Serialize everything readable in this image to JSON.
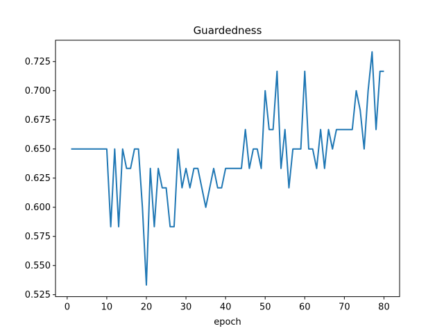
{
  "chart_data": {
    "type": "line",
    "title": "Guardedness",
    "xlabel": "epoch",
    "ylabel": "",
    "xlim": [
      -2.95,
      83.95
    ],
    "ylim": [
      0.5233,
      0.7433
    ],
    "xticks": [
      0,
      10,
      20,
      30,
      40,
      50,
      60,
      70,
      80
    ],
    "xtick_labels": [
      "0",
      "10",
      "20",
      "30",
      "40",
      "50",
      "60",
      "70",
      "80"
    ],
    "yticks": [
      0.525,
      0.55,
      0.575,
      0.6,
      0.625,
      0.65,
      0.675,
      0.7,
      0.725
    ],
    "ytick_labels": [
      "0.525",
      "0.550",
      "0.575",
      "0.600",
      "0.625",
      "0.650",
      "0.675",
      "0.700",
      "0.725"
    ],
    "grid": false,
    "series": [
      {
        "color": "#1f77b4",
        "x": [
          1,
          2,
          3,
          4,
          5,
          6,
          7,
          8,
          9,
          10,
          11,
          12,
          13,
          14,
          15,
          16,
          17,
          18,
          19,
          20,
          21,
          22,
          23,
          24,
          25,
          26,
          27,
          28,
          29,
          30,
          31,
          32,
          33,
          34,
          35,
          36,
          37,
          38,
          39,
          40,
          41,
          42,
          43,
          44,
          45,
          46,
          47,
          48,
          49,
          50,
          51,
          52,
          53,
          54,
          55,
          56,
          57,
          58,
          59,
          60,
          61,
          62,
          63,
          64,
          65,
          66,
          67,
          68,
          69,
          70,
          71,
          72,
          73,
          74,
          75,
          76,
          77,
          78,
          79,
          80
        ],
        "y": [
          0.65,
          0.65,
          0.65,
          0.65,
          0.65,
          0.65,
          0.65,
          0.65,
          0.65,
          0.65,
          0.5833,
          0.65,
          0.5833,
          0.65,
          0.6333,
          0.6333,
          0.65,
          0.65,
          0.6,
          0.5333,
          0.6333,
          0.5833,
          0.6333,
          0.6167,
          0.6167,
          0.5833,
          0.5833,
          0.65,
          0.6167,
          0.6333,
          0.6167,
          0.6333,
          0.6333,
          0.6167,
          0.6,
          0.6167,
          0.6333,
          0.6167,
          0.6167,
          0.6333,
          0.6333,
          0.6333,
          0.6333,
          0.6333,
          0.6667,
          0.6333,
          0.65,
          0.65,
          0.6333,
          0.7,
          0.6667,
          0.6667,
          0.7167,
          0.6333,
          0.6667,
          0.6167,
          0.65,
          0.65,
          0.65,
          0.7167,
          0.65,
          0.65,
          0.6333,
          0.6667,
          0.6333,
          0.6667,
          0.65,
          0.6667,
          0.6667,
          0.6667,
          0.6667,
          0.6667,
          0.7,
          0.6833,
          0.65,
          0.7,
          0.7333,
          0.6667,
          0.7167,
          0.7167
        ]
      }
    ]
  }
}
